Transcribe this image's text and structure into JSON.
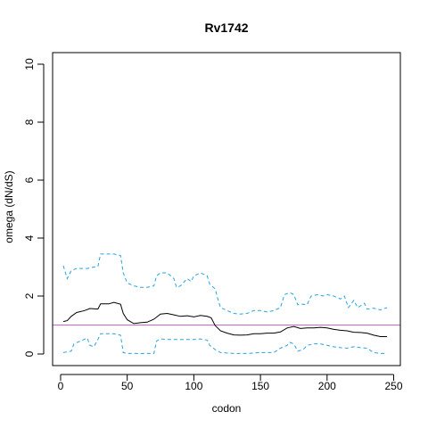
{
  "chart_data": {
    "type": "line",
    "title": "Rv1742",
    "xlabel": "codon",
    "ylabel": "omega (dN/dS)",
    "xlim": [
      -6,
      255
    ],
    "ylim": [
      -0.4,
      10.4
    ],
    "x_ticks": [
      0,
      50,
      100,
      150,
      200,
      250
    ],
    "y_ticks": [
      0,
      2,
      4,
      6,
      8,
      10
    ],
    "reference_line": {
      "y": 1.0,
      "color": "#cc66cc"
    },
    "series": [
      {
        "role": "estimate",
        "style": "solid",
        "color": "#000000",
        "points": [
          [
            2,
            1.12
          ],
          [
            5,
            1.15
          ],
          [
            8,
            1.3
          ],
          [
            12,
            1.43
          ],
          [
            18,
            1.5
          ],
          [
            22,
            1.57
          ],
          [
            28,
            1.55
          ],
          [
            30,
            1.73
          ],
          [
            36,
            1.73
          ],
          [
            40,
            1.78
          ],
          [
            45,
            1.72
          ],
          [
            47,
            1.4
          ],
          [
            50,
            1.18
          ],
          [
            55,
            1.05
          ],
          [
            60,
            1.08
          ],
          [
            65,
            1.1
          ],
          [
            70,
            1.2
          ],
          [
            75,
            1.38
          ],
          [
            80,
            1.4
          ],
          [
            85,
            1.35
          ],
          [
            90,
            1.3
          ],
          [
            95,
            1.32
          ],
          [
            100,
            1.28
          ],
          [
            105,
            1.33
          ],
          [
            110,
            1.3
          ],
          [
            113,
            1.25
          ],
          [
            116,
            0.98
          ],
          [
            120,
            0.8
          ],
          [
            125,
            0.72
          ],
          [
            130,
            0.66
          ],
          [
            135,
            0.65
          ],
          [
            140,
            0.66
          ],
          [
            145,
            0.7
          ],
          [
            150,
            0.7
          ],
          [
            155,
            0.72
          ],
          [
            160,
            0.72
          ],
          [
            165,
            0.76
          ],
          [
            170,
            0.9
          ],
          [
            175,
            0.95
          ],
          [
            180,
            0.88
          ],
          [
            185,
            0.9
          ],
          [
            190,
            0.9
          ],
          [
            195,
            0.92
          ],
          [
            200,
            0.9
          ],
          [
            205,
            0.85
          ],
          [
            210,
            0.82
          ],
          [
            215,
            0.8
          ],
          [
            220,
            0.75
          ],
          [
            225,
            0.74
          ],
          [
            230,
            0.72
          ],
          [
            235,
            0.65
          ],
          [
            240,
            0.6
          ],
          [
            245,
            0.6
          ]
        ]
      },
      {
        "role": "upper bound",
        "style": "dashed",
        "color": "#29a3e0",
        "points": [
          [
            2,
            3.05
          ],
          [
            5,
            2.6
          ],
          [
            8,
            2.88
          ],
          [
            12,
            2.95
          ],
          [
            20,
            2.95
          ],
          [
            25,
            3.0
          ],
          [
            28,
            3.02
          ],
          [
            30,
            3.45
          ],
          [
            40,
            3.45
          ],
          [
            45,
            3.4
          ],
          [
            47,
            2.8
          ],
          [
            50,
            2.45
          ],
          [
            55,
            2.35
          ],
          [
            60,
            2.3
          ],
          [
            65,
            2.3
          ],
          [
            70,
            2.35
          ],
          [
            72,
            2.7
          ],
          [
            75,
            2.8
          ],
          [
            80,
            2.8
          ],
          [
            85,
            2.6
          ],
          [
            87,
            2.3
          ],
          [
            90,
            2.35
          ],
          [
            95,
            2.6
          ],
          [
            98,
            2.5
          ],
          [
            100,
            2.7
          ],
          [
            105,
            2.8
          ],
          [
            110,
            2.7
          ],
          [
            112,
            2.4
          ],
          [
            116,
            2.25
          ],
          [
            118,
            1.9
          ],
          [
            120,
            1.6
          ],
          [
            125,
            1.5
          ],
          [
            130,
            1.4
          ],
          [
            135,
            1.38
          ],
          [
            140,
            1.4
          ],
          [
            145,
            1.5
          ],
          [
            150,
            1.5
          ],
          [
            155,
            1.45
          ],
          [
            160,
            1.5
          ],
          [
            165,
            1.6
          ],
          [
            168,
            2.05
          ],
          [
            172,
            2.12
          ],
          [
            175,
            2.05
          ],
          [
            178,
            1.7
          ],
          [
            182,
            1.72
          ],
          [
            185,
            1.7
          ],
          [
            188,
            2.0
          ],
          [
            193,
            2.05
          ],
          [
            197,
            2.0
          ],
          [
            200,
            2.05
          ],
          [
            205,
            2.0
          ],
          [
            210,
            1.9
          ],
          [
            213,
            2.0
          ],
          [
            216,
            1.6
          ],
          [
            220,
            1.85
          ],
          [
            223,
            1.6
          ],
          [
            228,
            1.75
          ],
          [
            230,
            1.55
          ],
          [
            235,
            1.58
          ],
          [
            240,
            1.52
          ],
          [
            245,
            1.6
          ]
        ]
      },
      {
        "role": "lower bound",
        "style": "dashed",
        "color": "#29a3e0",
        "points": [
          [
            2,
            0.05
          ],
          [
            8,
            0.1
          ],
          [
            10,
            0.35
          ],
          [
            15,
            0.45
          ],
          [
            20,
            0.55
          ],
          [
            22,
            0.3
          ],
          [
            25,
            0.25
          ],
          [
            28,
            0.5
          ],
          [
            30,
            0.7
          ],
          [
            40,
            0.7
          ],
          [
            45,
            0.65
          ],
          [
            47,
            0.05
          ],
          [
            50,
            0.02
          ],
          [
            60,
            0.02
          ],
          [
            70,
            0.02
          ],
          [
            72,
            0.45
          ],
          [
            75,
            0.52
          ],
          [
            80,
            0.5
          ],
          [
            90,
            0.5
          ],
          [
            100,
            0.5
          ],
          [
            105,
            0.52
          ],
          [
            110,
            0.48
          ],
          [
            112,
            0.3
          ],
          [
            116,
            0.15
          ],
          [
            120,
            0.05
          ],
          [
            130,
            0.02
          ],
          [
            140,
            0.02
          ],
          [
            150,
            0.05
          ],
          [
            160,
            0.05
          ],
          [
            165,
            0.2
          ],
          [
            170,
            0.3
          ],
          [
            172,
            0.4
          ],
          [
            175,
            0.35
          ],
          [
            178,
            0.1
          ],
          [
            182,
            0.15
          ],
          [
            185,
            0.3
          ],
          [
            190,
            0.35
          ],
          [
            195,
            0.35
          ],
          [
            200,
            0.3
          ],
          [
            205,
            0.25
          ],
          [
            210,
            0.22
          ],
          [
            215,
            0.2
          ],
          [
            220,
            0.25
          ],
          [
            225,
            0.22
          ],
          [
            230,
            0.2
          ],
          [
            235,
            0.05
          ],
          [
            240,
            0.02
          ],
          [
            245,
            0.02
          ]
        ]
      }
    ]
  }
}
